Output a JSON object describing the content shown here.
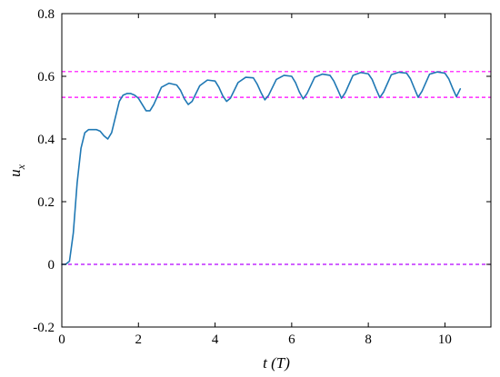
{
  "chart_data": {
    "type": "line",
    "xlabel": "t (T)",
    "ylabel": "u_x",
    "xlim": [
      0,
      11.2
    ],
    "ylim": [
      -0.2,
      0.8
    ],
    "xticks": [
      0,
      2,
      4,
      6,
      8,
      10
    ],
    "yticks": [
      -0.2,
      0,
      0.2,
      0.4,
      0.6,
      0.8
    ],
    "xtick_labels": [
      "0",
      "2",
      "4",
      "6",
      "8",
      "10"
    ],
    "ytick_labels": [
      "-0.2",
      "0",
      "0.2",
      "0.4",
      "0.6",
      "0.8"
    ],
    "grid": false,
    "legend": "none",
    "series": [
      {
        "color": "#1f78b4",
        "style": "solid",
        "x": [
          0,
          0.1,
          0.2,
          0.3,
          0.4,
          0.5,
          0.6,
          0.7,
          0.8,
          0.9,
          1.0,
          1.1,
          1.2,
          1.3,
          1.4,
          1.5,
          1.6,
          1.7,
          1.8,
          1.9,
          2.0,
          2.1,
          2.2,
          2.3,
          2.4,
          2.6,
          2.8,
          3.0,
          3.1,
          3.2,
          3.3,
          3.4,
          3.6,
          3.8,
          4.0,
          4.1,
          4.2,
          4.3,
          4.4,
          4.6,
          4.8,
          5.0,
          5.1,
          5.2,
          5.3,
          5.4,
          5.6,
          5.8,
          6.0,
          6.1,
          6.2,
          6.3,
          6.4,
          6.6,
          6.8,
          7.0,
          7.1,
          7.2,
          7.3,
          7.4,
          7.6,
          7.8,
          8.0,
          8.1,
          8.2,
          8.3,
          8.4,
          8.6,
          8.8,
          9.0,
          9.1,
          9.2,
          9.3,
          9.4,
          9.6,
          9.8,
          10.0,
          10.1,
          10.2,
          10.3,
          10.4
        ],
        "y": [
          0.0,
          0.0,
          0.01,
          0.1,
          0.26,
          0.37,
          0.42,
          0.43,
          0.43,
          0.43,
          0.425,
          0.41,
          0.4,
          0.42,
          0.47,
          0.52,
          0.54,
          0.545,
          0.545,
          0.54,
          0.53,
          0.51,
          0.49,
          0.49,
          0.51,
          0.565,
          0.578,
          0.572,
          0.555,
          0.528,
          0.51,
          0.52,
          0.57,
          0.588,
          0.585,
          0.565,
          0.538,
          0.52,
          0.53,
          0.58,
          0.597,
          0.595,
          0.575,
          0.548,
          0.525,
          0.54,
          0.59,
          0.603,
          0.6,
          0.58,
          0.55,
          0.528,
          0.545,
          0.597,
          0.607,
          0.603,
          0.585,
          0.558,
          0.53,
          0.548,
          0.603,
          0.612,
          0.608,
          0.59,
          0.56,
          0.532,
          0.55,
          0.605,
          0.613,
          0.61,
          0.592,
          0.562,
          0.533,
          0.552,
          0.607,
          0.614,
          0.61,
          0.592,
          0.562,
          0.535,
          0.56
        ]
      }
    ],
    "reference_lines": [
      {
        "y": 0.615,
        "color": "#ff00ff",
        "style": "dashed"
      },
      {
        "y": 0.533,
        "color": "#ff00ff",
        "style": "dashed"
      },
      {
        "y": 0.0,
        "color": "#b400ff",
        "style": "dashed"
      }
    ]
  }
}
